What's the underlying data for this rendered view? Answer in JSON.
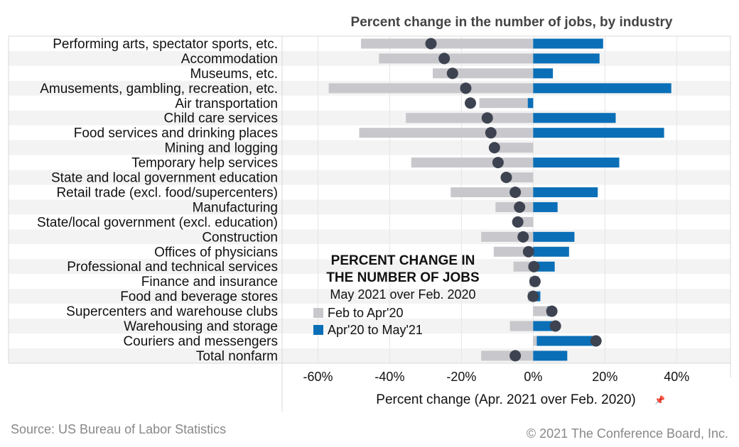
{
  "chart_data": {
    "type": "bar",
    "title": "Percent change in the number of jobs, by industry",
    "xlabel": "Percent change (Apr. 2021 over Feb. 2020)",
    "xlim": [
      -0.7,
      0.55
    ],
    "xticks": [
      -0.6,
      -0.4,
      -0.2,
      0,
      0.2,
      0.4
    ],
    "xtick_labels": [
      "-60%",
      "-40%",
      "-20%",
      "0%",
      "20%",
      "40%"
    ],
    "grid": "vertical",
    "categories": [
      "Performing arts, spectator sports, etc.",
      "Accommodation",
      "Museums, etc.",
      "Amusements, gambling, recreation, etc.",
      "Air transportation",
      "Child care services",
      "Food services and drinking places",
      "Mining and logging",
      "Temporary help services",
      "State and local government education",
      "Retail trade (excl. food/supercenters)",
      "Manufacturing",
      "State/local government (excl. education)",
      "Construction",
      "Offices of physicians",
      "Professional and technical services",
      "Finance and insurance",
      "Food and beverage stores",
      "Supercenters and warehouse clubs",
      "Warehousing and storage",
      "Couriers and messengers",
      "Total nonfarm"
    ],
    "series": [
      {
        "name": "Feb to Apr'20",
        "color": "#c8c8cc",
        "values": [
          -0.48,
          -0.43,
          -0.28,
          -0.57,
          -0.15,
          -0.355,
          -0.485,
          -0.11,
          -0.34,
          -0.065,
          -0.23,
          -0.105,
          -0.05,
          -0.145,
          -0.11,
          -0.055,
          -0.01,
          -0.015,
          0.04,
          -0.065,
          0.01,
          -0.145
        ]
      },
      {
        "name": "Apr'20 to May'21",
        "color": "#0a6fb7",
        "values": [
          0.195,
          0.185,
          0.055,
          0.385,
          -0.015,
          0.23,
          0.365,
          0,
          0.24,
          0,
          0.18,
          0.068,
          0,
          0.115,
          0.1,
          0.06,
          0.015,
          0.02,
          0.012,
          0.065,
          0.17,
          0.095
        ]
      }
    ],
    "net_change": {
      "label": "May 2021 over Feb. 2020",
      "color": "#3d4350",
      "values": [
        -0.285,
        -0.248,
        -0.225,
        -0.188,
        -0.175,
        -0.128,
        -0.118,
        -0.108,
        -0.098,
        -0.075,
        -0.05,
        -0.038,
        -0.043,
        -0.028,
        -0.013,
        0.002,
        0.005,
        0.0,
        0.052,
        0.062,
        0.175,
        -0.05
      ]
    },
    "legend": {
      "title_line1": "PERCENT CHANGE IN",
      "title_line2": "THE NUMBER OF JOBS",
      "subtitle": "May 2021 over Feb. 2020",
      "placement": "center"
    }
  },
  "footer": {
    "source": "Source: US Bureau of Labor Statistics",
    "copyright": "© 2021 The Conference Board, Inc."
  }
}
